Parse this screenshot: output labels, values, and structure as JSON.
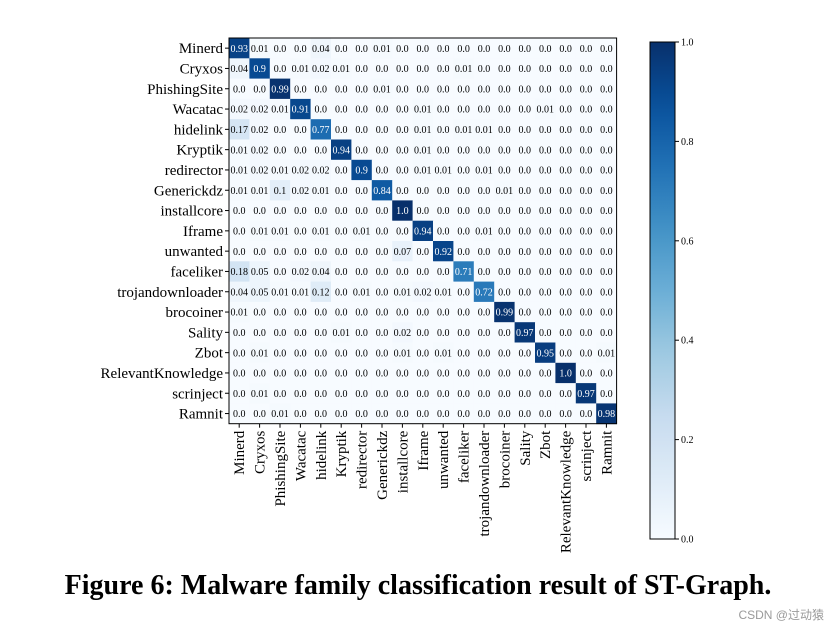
{
  "caption": "Figure 6: Malware family classification result of ST-Graph.",
  "watermark": "CSDN @过动猿",
  "chart_data": {
    "type": "heatmap",
    "title": "",
    "xlabel": "",
    "ylabel": "",
    "colormap": "Blues",
    "colorbar": {
      "min": 0.0,
      "max": 1.0,
      "ticks": [
        "0.0",
        "0.2",
        "0.4",
        "0.6",
        "0.8",
        "1.0"
      ]
    },
    "rows": [
      "Minerd",
      "Cryxos",
      "PhishingSite",
      "Wacatac",
      "hidelink",
      "Kryptik",
      "redirector",
      "Generickdz",
      "installcore",
      "Iframe",
      "unwanted",
      "faceliker",
      "trojandownloader",
      "brocoiner",
      "Sality",
      "Zbot",
      "RelevantKnowledge",
      "scrinject",
      "Ramnit"
    ],
    "cols": [
      "Minerd",
      "Cryxos",
      "PhishingSite",
      "Wacatac",
      "hidelink",
      "Kryptik",
      "redirector",
      "Generickdz",
      "installcore",
      "Iframe",
      "unwanted",
      "faceliker",
      "trojandownloader",
      "brocoiner",
      "Sality",
      "Zbot",
      "RelevantKnowledge",
      "scrinject",
      "Ramnit"
    ],
    "values": [
      [
        "0.93",
        "0.01",
        "0.0",
        "0.0",
        "0.04",
        "0.0",
        "0.0",
        "0.01",
        "0.0",
        "0.0",
        "0.0",
        "0.0",
        "0.0",
        "0.0",
        "0.0",
        "0.0",
        "0.0",
        "0.0",
        "0.0"
      ],
      [
        "0.04",
        "0.9",
        "0.0",
        "0.01",
        "0.02",
        "0.01",
        "0.0",
        "0.0",
        "0.0",
        "0.0",
        "0.0",
        "0.01",
        "0.0",
        "0.0",
        "0.0",
        "0.0",
        "0.0",
        "0.0",
        "0.0"
      ],
      [
        "0.0",
        "0.0",
        "0.99",
        "0.0",
        "0.0",
        "0.0",
        "0.0",
        "0.01",
        "0.0",
        "0.0",
        "0.0",
        "0.0",
        "0.0",
        "0.0",
        "0.0",
        "0.0",
        "0.0",
        "0.0",
        "0.0"
      ],
      [
        "0.02",
        "0.02",
        "0.01",
        "0.91",
        "0.0",
        "0.0",
        "0.0",
        "0.0",
        "0.0",
        "0.01",
        "0.0",
        "0.0",
        "0.0",
        "0.0",
        "0.0",
        "0.01",
        "0.0",
        "0.0",
        "0.0"
      ],
      [
        "0.17",
        "0.02",
        "0.0",
        "0.0",
        "0.77",
        "0.0",
        "0.0",
        "0.0",
        "0.0",
        "0.01",
        "0.0",
        "0.01",
        "0.01",
        "0.0",
        "0.0",
        "0.0",
        "0.0",
        "0.0",
        "0.0"
      ],
      [
        "0.01",
        "0.02",
        "0.0",
        "0.0",
        "0.0",
        "0.94",
        "0.0",
        "0.0",
        "0.0",
        "0.01",
        "0.0",
        "0.0",
        "0.0",
        "0.0",
        "0.0",
        "0.0",
        "0.0",
        "0.0",
        "0.0"
      ],
      [
        "0.01",
        "0.02",
        "0.01",
        "0.02",
        "0.02",
        "0.0",
        "0.9",
        "0.0",
        "0.0",
        "0.01",
        "0.01",
        "0.0",
        "0.01",
        "0.0",
        "0.0",
        "0.0",
        "0.0",
        "0.0",
        "0.0"
      ],
      [
        "0.01",
        "0.01",
        "0.1",
        "0.02",
        "0.01",
        "0.0",
        "0.0",
        "0.84",
        "0.0",
        "0.0",
        "0.0",
        "0.0",
        "0.0",
        "0.01",
        "0.0",
        "0.0",
        "0.0",
        "0.0",
        "0.0"
      ],
      [
        "0.0",
        "0.0",
        "0.0",
        "0.0",
        "0.0",
        "0.0",
        "0.0",
        "0.0",
        "1.0",
        "0.0",
        "0.0",
        "0.0",
        "0.0",
        "0.0",
        "0.0",
        "0.0",
        "0.0",
        "0.0",
        "0.0"
      ],
      [
        "0.0",
        "0.01",
        "0.01",
        "0.0",
        "0.01",
        "0.0",
        "0.01",
        "0.0",
        "0.0",
        "0.94",
        "0.0",
        "0.0",
        "0.01",
        "0.0",
        "0.0",
        "0.0",
        "0.0",
        "0.0",
        "0.0"
      ],
      [
        "0.0",
        "0.0",
        "0.0",
        "0.0",
        "0.0",
        "0.0",
        "0.0",
        "0.0",
        "0.07",
        "0.0",
        "0.92",
        "0.0",
        "0.0",
        "0.0",
        "0.0",
        "0.0",
        "0.0",
        "0.0",
        "0.0"
      ],
      [
        "0.18",
        "0.05",
        "0.0",
        "0.02",
        "0.04",
        "0.0",
        "0.0",
        "0.0",
        "0.0",
        "0.0",
        "0.0",
        "0.71",
        "0.0",
        "0.0",
        "0.0",
        "0.0",
        "0.0",
        "0.0",
        "0.0"
      ],
      [
        "0.04",
        "0.05",
        "0.01",
        "0.01",
        "0.12",
        "0.0",
        "0.01",
        "0.0",
        "0.01",
        "0.02",
        "0.01",
        "0.0",
        "0.72",
        "0.0",
        "0.0",
        "0.0",
        "0.0",
        "0.0",
        "0.0"
      ],
      [
        "0.01",
        "0.0",
        "0.0",
        "0.0",
        "0.0",
        "0.0",
        "0.0",
        "0.0",
        "0.0",
        "0.0",
        "0.0",
        "0.0",
        "0.0",
        "0.99",
        "0.0",
        "0.0",
        "0.0",
        "0.0",
        "0.0"
      ],
      [
        "0.0",
        "0.0",
        "0.0",
        "0.0",
        "0.0",
        "0.01",
        "0.0",
        "0.0",
        "0.02",
        "0.0",
        "0.0",
        "0.0",
        "0.0",
        "0.0",
        "0.97",
        "0.0",
        "0.0",
        "0.0",
        "0.0"
      ],
      [
        "0.0",
        "0.01",
        "0.0",
        "0.0",
        "0.0",
        "0.0",
        "0.0",
        "0.0",
        "0.01",
        "0.0",
        "0.01",
        "0.0",
        "0.0",
        "0.0",
        "0.0",
        "0.95",
        "0.0",
        "0.0",
        "0.01"
      ],
      [
        "0.0",
        "0.0",
        "0.0",
        "0.0",
        "0.0",
        "0.0",
        "0.0",
        "0.0",
        "0.0",
        "0.0",
        "0.0",
        "0.0",
        "0.0",
        "0.0",
        "0.0",
        "0.0",
        "1.0",
        "0.0",
        "0.0"
      ],
      [
        "0.0",
        "0.01",
        "0.0",
        "0.0",
        "0.0",
        "0.0",
        "0.0",
        "0.0",
        "0.0",
        "0.0",
        "0.0",
        "0.0",
        "0.0",
        "0.0",
        "0.0",
        "0.0",
        "0.0",
        "0.97",
        "0.0"
      ],
      [
        "0.0",
        "0.0",
        "0.01",
        "0.0",
        "0.0",
        "0.0",
        "0.0",
        "0.0",
        "0.0",
        "0.0",
        "0.0",
        "0.0",
        "0.0",
        "0.0",
        "0.0",
        "0.0",
        "0.0",
        "0.0",
        "0.98"
      ]
    ]
  }
}
